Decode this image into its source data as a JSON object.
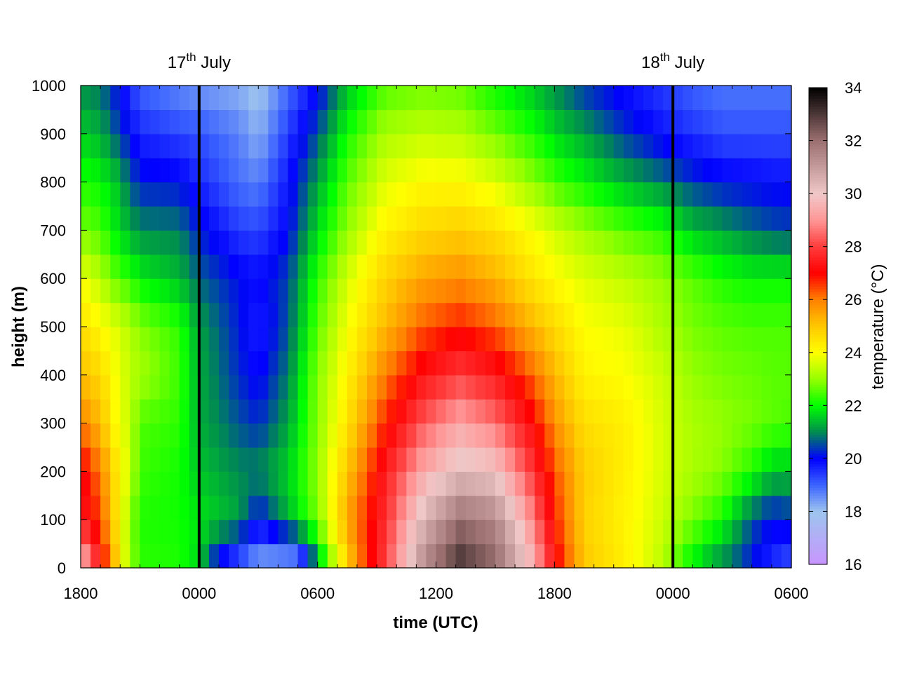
{
  "chart_data": {
    "type": "heatmap",
    "title": "",
    "xlabel": "time (UTC)",
    "ylabel": "height (m)",
    "x_tick_labels": [
      "1800",
      "0000",
      "0600",
      "1200",
      "1800",
      "0000",
      "0600"
    ],
    "x_tick_hours": [
      0,
      6,
      12,
      18,
      24,
      30,
      36
    ],
    "xlim_hours": [
      0,
      36
    ],
    "ylim": [
      0,
      1000
    ],
    "y_ticks": [
      0,
      100,
      200,
      300,
      400,
      500,
      600,
      700,
      800,
      900,
      1000
    ],
    "grid": false,
    "colorbar": {
      "label": "temperature (°C)",
      "range": [
        16,
        34
      ],
      "ticks": [
        16,
        18,
        20,
        22,
        24,
        26,
        28,
        30,
        32,
        34
      ],
      "colormap": [
        [
          16,
          "#c896ff"
        ],
        [
          18,
          "#9ec4ee"
        ],
        [
          19,
          "#3c64ff"
        ],
        [
          20,
          "#0000ff"
        ],
        [
          21,
          "#008c50"
        ],
        [
          22,
          "#00ff00"
        ],
        [
          23,
          "#96ff00"
        ],
        [
          24,
          "#ffff00"
        ],
        [
          25,
          "#ffc800"
        ],
        [
          26,
          "#ff8000"
        ],
        [
          27,
          "#ff0000"
        ],
        [
          28,
          "#ff3c3c"
        ],
        [
          29,
          "#ff9696"
        ],
        [
          30,
          "#f0c8c8"
        ],
        [
          32,
          "#9c7070"
        ],
        [
          34,
          "#000000"
        ]
      ]
    },
    "grid_resolution": {
      "time_step_hours": 0.5,
      "height_step_m": 50
    },
    "temperature_rows": [
      {
        "height": 0,
        "values": [
          [
            0,
            30
          ],
          [
            1,
            27.5
          ],
          [
            1.8,
            25
          ],
          [
            2.3,
            23.5
          ],
          [
            3,
            22.3
          ],
          [
            5,
            22.2
          ],
          [
            6,
            21.6
          ],
          [
            7,
            19.6
          ],
          [
            8,
            18.8
          ],
          [
            9,
            18.1
          ],
          [
            11,
            17.9
          ],
          [
            11.5,
            19.4
          ],
          [
            12.4,
            22.2
          ],
          [
            14,
            25.8
          ],
          [
            15.7,
            28.5
          ],
          [
            17.4,
            31.5
          ],
          [
            19.2,
            33.2
          ],
          [
            21,
            32.2
          ],
          [
            22.8,
            29.8
          ],
          [
            24.2,
            27
          ],
          [
            25.5,
            25
          ],
          [
            27.5,
            24.3
          ],
          [
            29.5,
            23.3
          ],
          [
            30.5,
            22.2
          ],
          [
            32,
            21.1
          ],
          [
            33.5,
            20.4
          ],
          [
            35,
            19.5
          ],
          [
            36,
            19
          ]
        ]
      },
      {
        "height": 100,
        "values": [
          [
            0,
            27.6
          ],
          [
            1,
            26.5
          ],
          [
            1.8,
            24.5
          ],
          [
            2.5,
            23
          ],
          [
            3,
            22.2
          ],
          [
            5,
            22.1
          ],
          [
            6,
            21.8
          ],
          [
            8,
            21.2
          ],
          [
            9,
            20
          ],
          [
            10.5,
            21.3
          ],
          [
            12,
            22.8
          ],
          [
            13.5,
            25.5
          ],
          [
            15.6,
            28
          ],
          [
            17.4,
            30.5
          ],
          [
            19.2,
            32
          ],
          [
            21,
            31.5
          ],
          [
            22.8,
            29
          ],
          [
            24.2,
            26.5
          ],
          [
            25.5,
            24.8
          ],
          [
            27.5,
            24.2
          ],
          [
            29.5,
            23.5
          ],
          [
            31,
            22.8
          ],
          [
            32.5,
            22.1
          ],
          [
            34,
            20.6
          ],
          [
            35,
            20.1
          ],
          [
            36,
            20.3
          ]
        ]
      },
      {
        "height": 200,
        "values": [
          [
            0,
            27.3
          ],
          [
            1,
            26
          ],
          [
            1.8,
            24.5
          ],
          [
            2.5,
            23.5
          ],
          [
            3,
            22.4
          ],
          [
            5,
            22.1
          ],
          [
            6,
            21.5
          ],
          [
            8,
            21
          ],
          [
            9,
            21
          ],
          [
            10.5,
            21.6
          ],
          [
            12,
            23
          ],
          [
            13.5,
            25
          ],
          [
            15.4,
            27.5
          ],
          [
            17.3,
            29.3
          ],
          [
            19.2,
            30.3
          ],
          [
            21,
            30
          ],
          [
            22.8,
            28
          ],
          [
            24.2,
            26.2
          ],
          [
            25.5,
            24.9
          ],
          [
            27.5,
            24.3
          ],
          [
            29.5,
            23.6
          ],
          [
            31,
            23.2
          ],
          [
            32.5,
            22.9
          ],
          [
            34,
            22.2
          ],
          [
            35,
            21.5
          ],
          [
            36,
            21.5
          ]
        ]
      },
      {
        "height": 300,
        "values": [
          [
            0,
            26
          ],
          [
            1,
            25.2
          ],
          [
            1.8,
            24
          ],
          [
            2.5,
            23.4
          ],
          [
            3,
            22.5
          ],
          [
            5,
            22.3
          ],
          [
            6,
            21.3
          ],
          [
            8,
            20.6
          ],
          [
            9,
            20.3
          ],
          [
            10.5,
            21.2
          ],
          [
            12,
            22.9
          ],
          [
            13.5,
            24.5
          ],
          [
            15.4,
            26.7
          ],
          [
            17.3,
            28.3
          ],
          [
            19.2,
            29.3
          ],
          [
            21,
            28.6
          ],
          [
            22.8,
            27.2
          ],
          [
            24.2,
            25.6
          ],
          [
            25.5,
            24.6
          ],
          [
            27.5,
            24.3
          ],
          [
            29.5,
            23.6
          ],
          [
            31,
            23.2
          ],
          [
            32.5,
            23
          ],
          [
            34,
            22.8
          ],
          [
            35,
            22.6
          ],
          [
            36,
            22.5
          ]
        ]
      },
      {
        "height": 400,
        "values": [
          [
            0,
            25.1
          ],
          [
            1,
            24.7
          ],
          [
            1.8,
            23.9
          ],
          [
            2.5,
            23.4
          ],
          [
            3,
            23.2
          ],
          [
            5,
            22.4
          ],
          [
            6,
            21.3
          ],
          [
            8,
            20.3
          ],
          [
            9,
            19.9
          ],
          [
            10.5,
            20.9
          ],
          [
            12,
            22.9
          ],
          [
            13.5,
            24.2
          ],
          [
            15.4,
            26
          ],
          [
            17.3,
            27.3
          ],
          [
            19.2,
            28
          ],
          [
            21,
            27.5
          ],
          [
            22.8,
            26.3
          ],
          [
            24.2,
            25.1
          ],
          [
            25.5,
            24.2
          ],
          [
            27.5,
            24
          ],
          [
            29.5,
            23.5
          ],
          [
            31,
            23
          ],
          [
            32.5,
            22.8
          ],
          [
            34,
            22.7
          ],
          [
            35,
            22.6
          ],
          [
            36,
            22.6
          ]
        ]
      },
      {
        "height": 500,
        "values": [
          [
            0,
            24.6
          ],
          [
            1,
            24.1
          ],
          [
            1.8,
            23.7
          ],
          [
            2.5,
            23.3
          ],
          [
            3,
            22.9
          ],
          [
            5,
            22.3
          ],
          [
            6,
            21.2
          ],
          [
            8,
            20.2
          ],
          [
            9,
            19.6
          ],
          [
            10.5,
            20.6
          ],
          [
            12,
            22.6
          ],
          [
            13.5,
            23.9
          ],
          [
            15.4,
            25.2
          ],
          [
            17.3,
            26.3
          ],
          [
            19.2,
            26.8
          ],
          [
            21,
            26.3
          ],
          [
            22.8,
            25.3
          ],
          [
            24.2,
            24.6
          ],
          [
            25.5,
            24
          ],
          [
            27.5,
            23.8
          ],
          [
            29.5,
            23.2
          ],
          [
            31,
            22.8
          ],
          [
            32.5,
            22.6
          ],
          [
            34,
            22.5
          ],
          [
            35,
            22.5
          ],
          [
            36,
            22.5
          ]
        ]
      },
      {
        "height": 600,
        "values": [
          [
            0,
            23.9
          ],
          [
            1,
            23.3
          ],
          [
            1.8,
            22.6
          ],
          [
            2.5,
            22.3
          ],
          [
            3,
            21.9
          ],
          [
            5,
            21.4
          ],
          [
            6,
            20.7
          ],
          [
            8,
            20.1
          ],
          [
            9,
            19.9
          ],
          [
            10.5,
            20.5
          ],
          [
            12,
            22.3
          ],
          [
            13.5,
            23.6
          ],
          [
            15.4,
            24.8
          ],
          [
            17.3,
            25.5
          ],
          [
            19.2,
            25.8
          ],
          [
            21,
            25.3
          ],
          [
            22.8,
            24.5
          ],
          [
            24.2,
            24
          ],
          [
            25.5,
            23.7
          ],
          [
            27.5,
            23.4
          ],
          [
            29.5,
            23
          ],
          [
            31,
            22.6
          ],
          [
            32.5,
            22.2
          ],
          [
            34,
            22
          ],
          [
            35,
            22
          ],
          [
            36,
            22
          ]
        ]
      },
      {
        "height": 700,
        "values": [
          [
            0,
            22.8
          ],
          [
            1,
            22.5
          ],
          [
            1.8,
            21.8
          ],
          [
            2.5,
            21.3
          ],
          [
            3,
            21
          ],
          [
            5,
            20.9
          ],
          [
            6,
            20.2
          ],
          [
            8,
            19.4
          ],
          [
            9,
            19.3
          ],
          [
            10.5,
            20
          ],
          [
            12,
            21.7
          ],
          [
            13.5,
            23
          ],
          [
            15.4,
            24.2
          ],
          [
            17.3,
            24.7
          ],
          [
            19.2,
            24.9
          ],
          [
            21,
            24.6
          ],
          [
            22.8,
            24
          ],
          [
            24.2,
            23.5
          ],
          [
            25.5,
            23.1
          ],
          [
            27.5,
            22.6
          ],
          [
            29.5,
            22.2
          ],
          [
            31,
            21.5
          ],
          [
            32.5,
            21.2
          ],
          [
            34,
            20.8
          ],
          [
            35,
            20.6
          ],
          [
            36,
            20.5
          ]
        ]
      },
      {
        "height": 800,
        "values": [
          [
            0,
            22.2
          ],
          [
            1,
            22
          ],
          [
            1.8,
            21.5
          ],
          [
            2.5,
            20.7
          ],
          [
            3,
            20.2
          ],
          [
            5,
            20.1
          ],
          [
            6,
            19.6
          ],
          [
            8,
            18.9
          ],
          [
            9,
            18.7
          ],
          [
            10.5,
            19.8
          ],
          [
            12,
            21.2
          ],
          [
            13.5,
            22.6
          ],
          [
            15.4,
            23.7
          ],
          [
            17.3,
            24.1
          ],
          [
            19.2,
            24.1
          ],
          [
            21,
            23.7
          ],
          [
            22.8,
            23
          ],
          [
            24.2,
            22.4
          ],
          [
            25.5,
            22
          ],
          [
            27.5,
            21.4
          ],
          [
            29.5,
            20.9
          ],
          [
            31,
            20.4
          ],
          [
            32.5,
            20.1
          ],
          [
            34,
            20
          ],
          [
            35,
            19.9
          ],
          [
            36,
            19.9
          ]
        ]
      },
      {
        "height": 900,
        "values": [
          [
            0,
            21.6
          ],
          [
            1,
            21.3
          ],
          [
            1.8,
            20.6
          ],
          [
            2.5,
            20
          ],
          [
            3,
            19.6
          ],
          [
            5,
            19.3
          ],
          [
            6,
            19.2
          ],
          [
            8,
            18.7
          ],
          [
            9,
            18.2
          ],
          [
            10.5,
            19.4
          ],
          [
            12,
            20.6
          ],
          [
            13.5,
            22.1
          ],
          [
            15.4,
            23.2
          ],
          [
            17.3,
            23.4
          ],
          [
            19.2,
            23.3
          ],
          [
            21,
            22.8
          ],
          [
            22.8,
            22.2
          ],
          [
            24.2,
            21.6
          ],
          [
            25.5,
            21.2
          ],
          [
            27.5,
            20.4
          ],
          [
            29.5,
            19.8
          ],
          [
            31,
            19.5
          ],
          [
            32.5,
            19.2
          ],
          [
            34,
            19.2
          ],
          [
            35,
            19.2
          ],
          [
            36,
            19.2
          ]
        ]
      },
      {
        "height": 1000,
        "values": [
          [
            0,
            21
          ],
          [
            1,
            20.8
          ],
          [
            1.8,
            20.1
          ],
          [
            2.5,
            19.5
          ],
          [
            3,
            19
          ],
          [
            5,
            18.6
          ],
          [
            6,
            18.4
          ],
          [
            8,
            18.2
          ],
          [
            9,
            17.9
          ],
          [
            10.5,
            18.9
          ],
          [
            12,
            19.9
          ],
          [
            13.5,
            21.4
          ],
          [
            15.4,
            22.5
          ],
          [
            17.3,
            22.7
          ],
          [
            19.2,
            22.6
          ],
          [
            21,
            22
          ],
          [
            22.8,
            21.5
          ],
          [
            24.2,
            20.9
          ],
          [
            25.5,
            20.3
          ],
          [
            27.5,
            19.8
          ],
          [
            29.5,
            19.4
          ],
          [
            31,
            19
          ],
          [
            32.5,
            18.8
          ],
          [
            34,
            18.8
          ],
          [
            35,
            18.8
          ],
          [
            36,
            18.8
          ]
        ]
      }
    ],
    "annotations": [
      {
        "x_hours": 6,
        "label_day": "17",
        "label_suffix": "th",
        "label_month": " July"
      },
      {
        "x_hours": 30,
        "label_day": "18",
        "label_suffix": "th",
        "label_month": " July"
      }
    ]
  }
}
